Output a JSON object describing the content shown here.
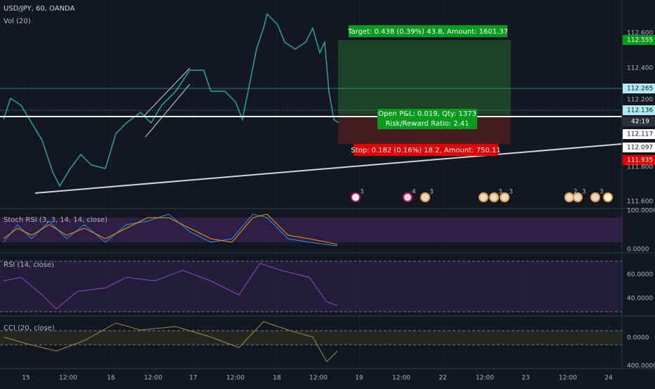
{
  "header": {
    "symbol": "USD/JPY, 60, OANDA",
    "volume": "Vol (20)"
  },
  "price_axis": [
    "112.600",
    "112.555",
    "112.400",
    "112.265",
    "112.200",
    "112.136",
    "42:19",
    "112.117",
    "112.097",
    "111.935",
    "111.800",
    "111.600"
  ],
  "indicators": {
    "stoch": {
      "label": "Stoch RSI (3, 3, 14, 14, close)",
      "ticks": [
        "100.0000",
        "0.0000"
      ]
    },
    "rsi": {
      "label": "RSI (14, close)",
      "ticks": [
        "60.0000",
        "40.0000"
      ]
    },
    "cci": {
      "label": "CCI (20, close)",
      "ticks": [
        "0.0000",
        "400.0000"
      ]
    }
  },
  "position": {
    "target": "Target: 0.438 (0.39%) 43.8, Amount: 1601.37",
    "pnl": "Open P&L: 0.019, Qty: 1373",
    "ratio": "Risk/Reward Ratio: 2.41",
    "stop": "Stop: 0.182 (0.16%) 18.2, Amount: 750.11"
  },
  "events": [
    "3",
    "4",
    "3",
    "3",
    "3",
    "2",
    "3",
    "3"
  ],
  "time_axis": [
    "15",
    "12:00",
    "16",
    "12:00",
    "17",
    "12:00",
    "18",
    "12:00",
    "19",
    "12:00",
    "22",
    "12:00",
    "23",
    "12:00",
    "24"
  ]
}
